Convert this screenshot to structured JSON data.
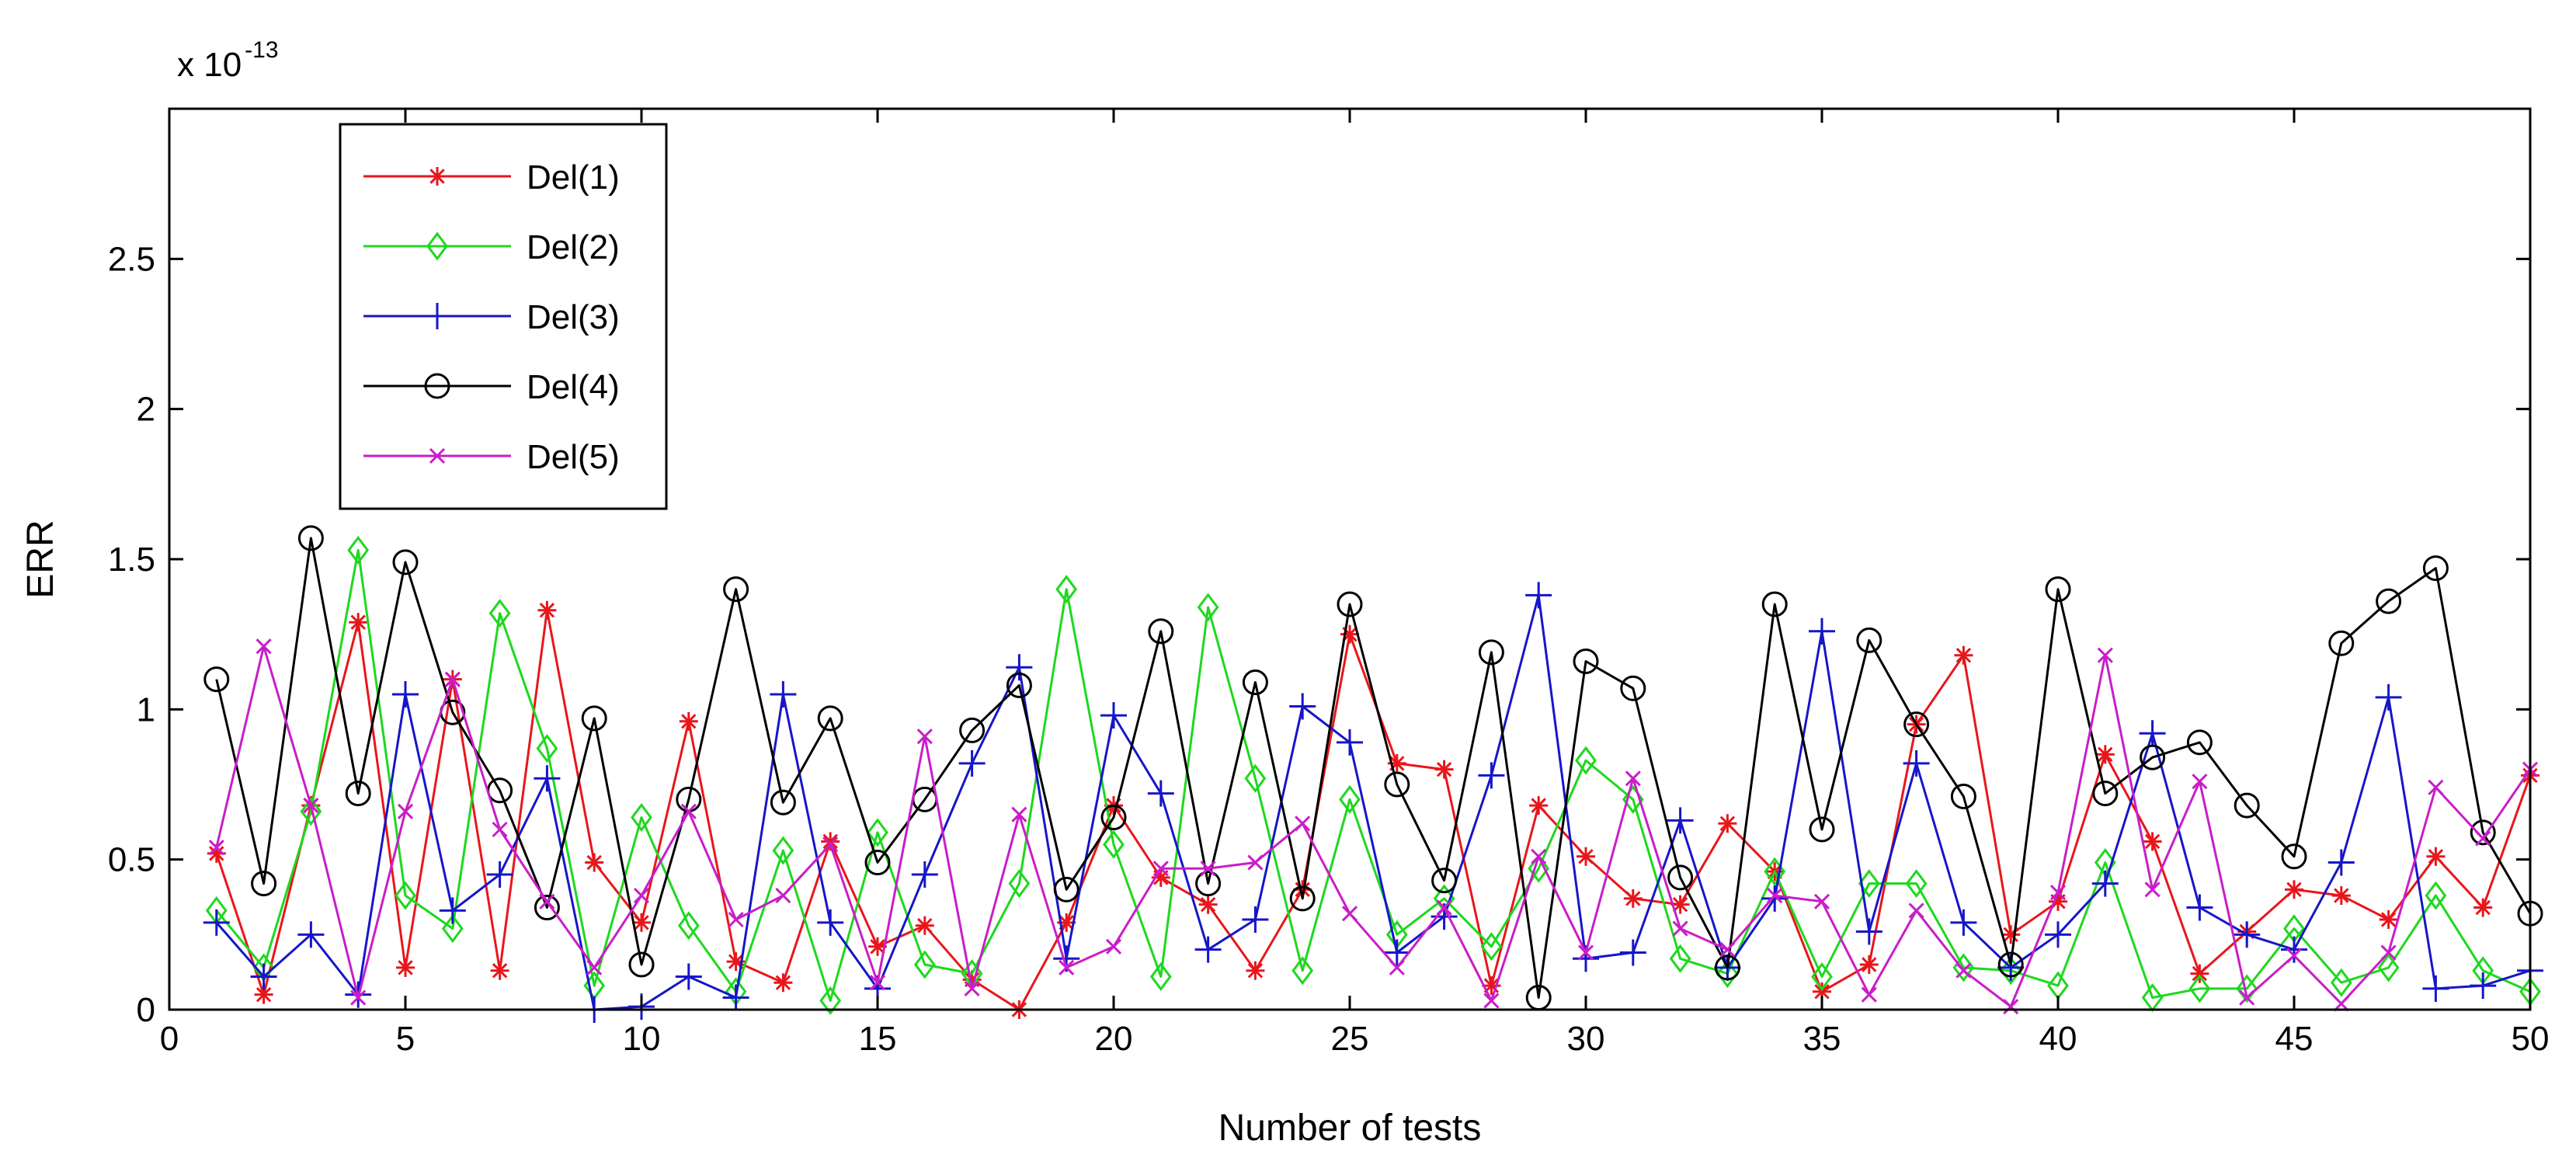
{
  "chart_data": {
    "type": "line",
    "title": "",
    "xlabel": "Number of tests",
    "ylabel": "ERR",
    "scale_label": "x 10",
    "scale_exponent": "-13",
    "xlim": [
      0,
      50
    ],
    "ylim": [
      0,
      3
    ],
    "xticks": [
      0,
      5,
      10,
      15,
      20,
      25,
      30,
      35,
      40,
      45,
      50
    ],
    "xtick_labels": [
      "0",
      "5",
      "10",
      "15",
      "20",
      "25",
      "30",
      "35",
      "40",
      "45",
      "50"
    ],
    "yticks": [
      0,
      0.5,
      1,
      1.5,
      2,
      2.5
    ],
    "ytick_labels": [
      "0",
      "0.5",
      "1",
      "1.5",
      "2",
      "2.5"
    ],
    "grid": false,
    "legend_position": "top-left",
    "x": [
      1,
      2,
      3,
      4,
      5,
      6,
      7,
      8,
      9,
      10,
      11,
      12,
      13,
      14,
      15,
      16,
      17,
      18,
      19,
      20,
      21,
      22,
      23,
      24,
      25,
      26,
      27,
      28,
      29,
      30,
      31,
      32,
      33,
      34,
      35,
      36,
      37,
      38,
      39,
      40,
      41,
      42,
      43,
      44,
      45,
      46,
      47,
      48,
      49,
      50
    ],
    "series": [
      {
        "name": "Del(1)",
        "color": "#e8161b",
        "marker": "asterisk",
        "values": [
          0.52,
          0.05,
          0.68,
          1.29,
          0.14,
          1.1,
          0.13,
          1.33,
          0.49,
          0.29,
          0.96,
          0.16,
          0.09,
          0.56,
          0.21,
          0.28,
          0.1,
          0.0,
          0.29,
          0.68,
          0.44,
          0.35,
          0.13,
          0.4,
          1.25,
          0.82,
          0.8,
          0.08,
          0.68,
          0.51,
          0.37,
          0.35,
          0.62,
          0.46,
          0.06,
          0.15,
          0.95,
          1.18,
          0.25,
          0.36,
          0.85,
          0.56,
          0.12,
          0.26,
          0.4,
          0.38,
          0.3,
          0.51,
          0.34,
          0.78
        ]
      },
      {
        "name": "Del(2)",
        "color": "#1ed81e",
        "marker": "diamond",
        "values": [
          0.33,
          0.14,
          0.66,
          1.53,
          0.38,
          0.27,
          1.32,
          0.87,
          0.08,
          0.64,
          0.28,
          0.06,
          0.53,
          0.03,
          0.59,
          0.15,
          0.12,
          0.42,
          1.4,
          0.55,
          0.11,
          1.34,
          0.77,
          0.13,
          0.7,
          0.25,
          0.37,
          0.21,
          0.47,
          0.83,
          0.7,
          0.17,
          0.12,
          0.46,
          0.11,
          0.42,
          0.42,
          0.14,
          0.13,
          0.08,
          0.49,
          0.04,
          0.07,
          0.07,
          0.27,
          0.09,
          0.14,
          0.38,
          0.13,
          0.06
        ]
      },
      {
        "name": "Del(3)",
        "color": "#1616c8",
        "marker": "plus",
        "values": [
          0.29,
          0.11,
          0.25,
          0.05,
          1.05,
          0.33,
          0.45,
          0.77,
          0.0,
          0.01,
          0.11,
          0.04,
          1.05,
          0.29,
          0.07,
          0.45,
          0.82,
          1.14,
          0.17,
          0.98,
          0.72,
          0.2,
          0.3,
          1.01,
          0.89,
          0.19,
          0.31,
          0.78,
          1.38,
          0.17,
          0.19,
          0.63,
          0.14,
          0.37,
          1.26,
          0.26,
          0.82,
          0.29,
          0.14,
          0.25,
          0.42,
          0.92,
          0.34,
          0.25,
          0.2,
          0.49,
          1.04,
          0.07,
          0.08,
          0.13
        ]
      },
      {
        "name": "Del(4)",
        "color": "#000000",
        "marker": "circle",
        "values": [
          1.1,
          0.42,
          1.57,
          0.72,
          1.49,
          0.99,
          0.73,
          0.34,
          0.97,
          0.15,
          0.7,
          1.4,
          0.69,
          0.97,
          0.49,
          0.7,
          0.93,
          1.08,
          0.4,
          0.64,
          1.26,
          0.42,
          1.09,
          0.37,
          1.35,
          0.75,
          0.43,
          1.19,
          0.04,
          1.16,
          1.07,
          0.44,
          0.14,
          1.35,
          0.6,
          1.23,
          0.95,
          0.71,
          0.15,
          1.4,
          0.72,
          0.84,
          0.89,
          0.68,
          0.51,
          1.22,
          1.36,
          1.47,
          0.59,
          0.32
        ]
      },
      {
        "name": "Del(5)",
        "color": "#c81ec8",
        "marker": "x",
        "values": [
          0.54,
          1.21,
          0.68,
          0.04,
          0.66,
          1.1,
          0.6,
          0.36,
          0.14,
          0.38,
          0.66,
          0.3,
          0.38,
          0.55,
          0.09,
          0.91,
          0.07,
          0.65,
          0.14,
          0.21,
          0.47,
          0.47,
          0.49,
          0.62,
          0.32,
          0.14,
          0.34,
          0.03,
          0.51,
          0.19,
          0.77,
          0.27,
          0.2,
          0.38,
          0.36,
          0.05,
          0.33,
          0.13,
          0.01,
          0.39,
          1.18,
          0.4,
          0.76,
          0.04,
          0.18,
          0.02,
          0.19,
          0.74,
          0.57,
          0.8
        ]
      }
    ]
  }
}
